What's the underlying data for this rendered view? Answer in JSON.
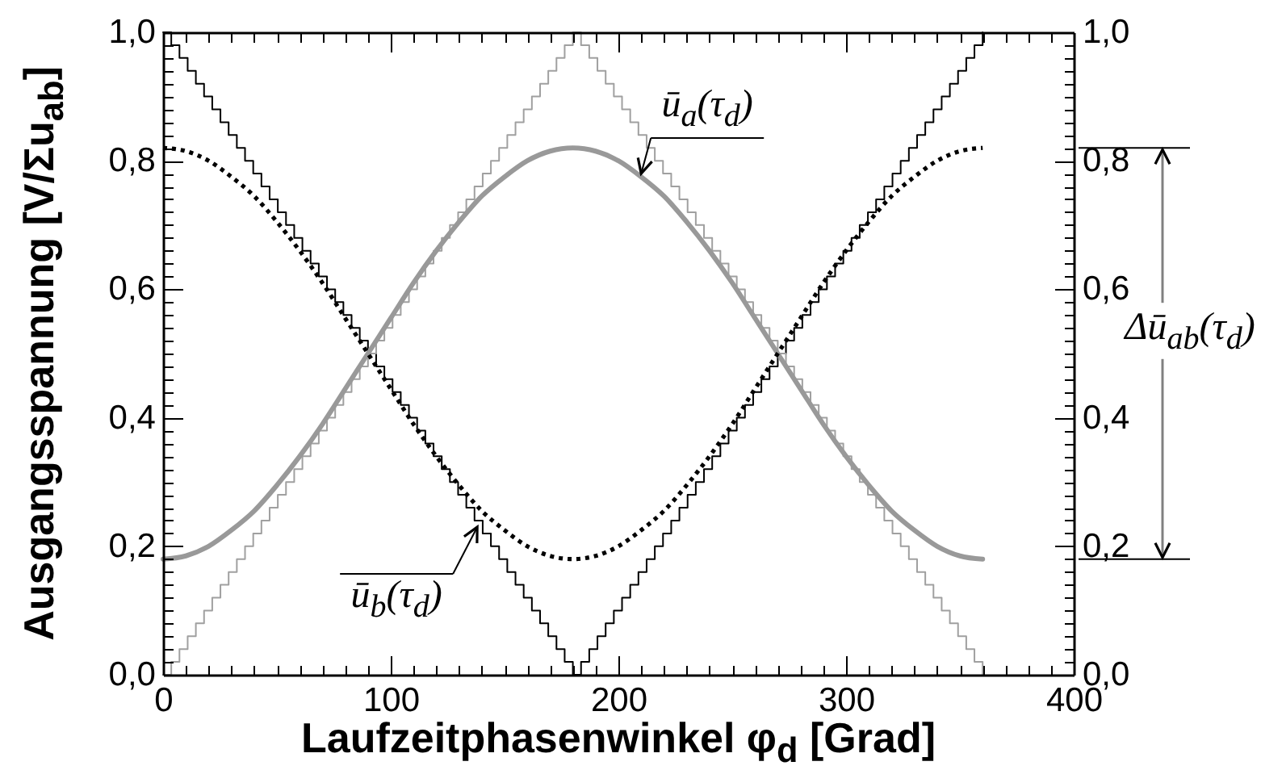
{
  "chart_data": {
    "type": "line",
    "xlabel": "Laufzeitphasenwinkel φ$_{d}$ [Grad]",
    "ylabel": "Ausgangsspannung [V/Σu$_{ab}$]",
    "xlim": [
      0,
      400
    ],
    "ylim": [
      0,
      1
    ],
    "y2lim": [
      0,
      1
    ],
    "xticks": [
      0,
      {
        "value": 10,
        "label": null
      },
      {
        "value": 20,
        "label": null
      },
      {
        "value": 30,
        "label": null
      },
      {
        "value": 40,
        "label": null
      },
      {
        "value": 50,
        "label": null
      },
      {
        "value": 60,
        "label": null
      },
      {
        "value": 70,
        "label": null
      },
      {
        "value": 80,
        "label": null
      },
      {
        "value": 90,
        "label": null
      },
      100,
      {
        "value": 110,
        "label": null
      },
      {
        "value": 120,
        "label": null
      },
      {
        "value": 130,
        "label": null
      },
      {
        "value": 140,
        "label": null
      },
      {
        "value": 150,
        "label": null
      },
      {
        "value": 160,
        "label": null
      },
      {
        "value": 170,
        "label": null
      },
      {
        "value": 180,
        "label": null
      },
      {
        "value": 190,
        "label": null
      },
      200,
      {
        "value": 210,
        "label": null
      },
      {
        "value": 220,
        "label": null
      },
      {
        "value": 230,
        "label": null
      },
      {
        "value": 240,
        "label": null
      },
      {
        "value": 250,
        "label": null
      },
      {
        "value": 260,
        "label": null
      },
      {
        "value": 270,
        "label": null
      },
      {
        "value": 280,
        "label": null
      },
      {
        "value": 290,
        "label": null
      },
      300,
      {
        "value": 310,
        "label": null
      },
      {
        "value": 320,
        "label": null
      },
      {
        "value": 330,
        "label": null
      },
      {
        "value": 340,
        "label": null
      },
      {
        "value": 350,
        "label": null
      },
      {
        "value": 360,
        "label": null
      },
      {
        "value": 370,
        "label": null
      },
      {
        "value": 380,
        "label": null
      },
      {
        "value": 390,
        "label": null
      },
      400
    ],
    "yticks": [
      {
        "value": 0,
        "label": "0,0"
      },
      {
        "value": 0.02,
        "label": null
      },
      {
        "value": 0.04,
        "label": null
      },
      {
        "value": 0.06,
        "label": null
      },
      {
        "value": 0.08,
        "label": null
      },
      {
        "value": 0.1,
        "label": null
      },
      {
        "value": 0.12,
        "label": null
      },
      {
        "value": 0.14,
        "label": null
      },
      {
        "value": 0.16,
        "label": null
      },
      {
        "value": 0.18,
        "label": null
      },
      {
        "value": 0.2,
        "label": "0,2"
      },
      {
        "value": 0.22,
        "label": null
      },
      {
        "value": 0.24,
        "label": null
      },
      {
        "value": 0.26,
        "label": null
      },
      {
        "value": 0.28,
        "label": null
      },
      {
        "value": 0.3,
        "label": null
      },
      {
        "value": 0.32,
        "label": null
      },
      {
        "value": 0.34,
        "label": null
      },
      {
        "value": 0.36,
        "label": null
      },
      {
        "value": 0.38,
        "label": null
      },
      {
        "value": 0.4,
        "label": "0,4"
      },
      {
        "value": 0.42,
        "label": null
      },
      {
        "value": 0.44,
        "label": null
      },
      {
        "value": 0.46,
        "label": null
      },
      {
        "value": 0.48,
        "label": null
      },
      {
        "value": 0.5,
        "label": null
      },
      {
        "value": 0.52,
        "label": null
      },
      {
        "value": 0.54,
        "label": null
      },
      {
        "value": 0.56,
        "label": null
      },
      {
        "value": 0.58,
        "label": null
      },
      {
        "value": 0.6,
        "label": "0,6"
      },
      {
        "value": 0.62,
        "label": null
      },
      {
        "value": 0.64,
        "label": null
      },
      {
        "value": 0.66,
        "label": null
      },
      {
        "value": 0.68,
        "label": null
      },
      {
        "value": 0.7,
        "label": null
      },
      {
        "value": 0.72,
        "label": null
      },
      {
        "value": 0.74,
        "label": null
      },
      {
        "value": 0.76,
        "label": null
      },
      {
        "value": 0.78,
        "label": null
      },
      {
        "value": 0.8,
        "label": "0,8"
      },
      {
        "value": 0.82,
        "label": null
      },
      {
        "value": 0.84,
        "label": null
      },
      {
        "value": 0.86,
        "label": null
      },
      {
        "value": 0.88,
        "label": null
      },
      {
        "value": 0.9,
        "label": null
      },
      {
        "value": 0.92,
        "label": null
      },
      {
        "value": 0.94,
        "label": null
      },
      {
        "value": 0.96,
        "label": null
      },
      {
        "value": 0.98,
        "label": null
      },
      {
        "value": 1,
        "label": "1,0"
      }
    ],
    "y2ticks": [
      {
        "value": 0,
        "label": "0,0"
      },
      {
        "value": 0.02,
        "label": null
      },
      {
        "value": 0.04,
        "label": null
      },
      {
        "value": 0.06,
        "label": null
      },
      {
        "value": 0.08,
        "label": null
      },
      {
        "value": 0.1,
        "label": null
      },
      {
        "value": 0.12,
        "label": null
      },
      {
        "value": 0.14,
        "label": null
      },
      {
        "value": 0.16,
        "label": null
      },
      {
        "value": 0.18,
        "label": null
      },
      {
        "value": 0.2,
        "label": "0,2"
      },
      {
        "value": 0.22,
        "label": null
      },
      {
        "value": 0.24,
        "label": null
      },
      {
        "value": 0.26,
        "label": null
      },
      {
        "value": 0.28,
        "label": null
      },
      {
        "value": 0.3,
        "label": null
      },
      {
        "value": 0.32,
        "label": null
      },
      {
        "value": 0.34,
        "label": null
      },
      {
        "value": 0.36,
        "label": null
      },
      {
        "value": 0.38,
        "label": null
      },
      {
        "value": 0.4,
        "label": "0,4"
      },
      {
        "value": 0.42,
        "label": null
      },
      {
        "value": 0.44,
        "label": null
      },
      {
        "value": 0.46,
        "label": null
      },
      {
        "value": 0.48,
        "label": null
      },
      {
        "value": 0.5,
        "label": null
      },
      {
        "value": 0.52,
        "label": null
      },
      {
        "value": 0.54,
        "label": null
      },
      {
        "value": 0.56,
        "label": null
      },
      {
        "value": 0.58,
        "label": null
      },
      {
        "value": 0.6,
        "label": "0,6"
      },
      {
        "value": 0.62,
        "label": null
      },
      {
        "value": 0.64,
        "label": null
      },
      {
        "value": 0.66,
        "label": null
      },
      {
        "value": 0.68,
        "label": null
      },
      {
        "value": 0.7,
        "label": null
      },
      {
        "value": 0.72,
        "label": null
      },
      {
        "value": 0.74,
        "label": null
      },
      {
        "value": 0.76,
        "label": null
      },
      {
        "value": 0.78,
        "label": null
      },
      {
        "value": 0.8,
        "label": "0,8"
      },
      {
        "value": 0.82,
        "label": null
      },
      {
        "value": 0.84,
        "label": null
      },
      {
        "value": 0.86,
        "label": null
      },
      {
        "value": 0.88,
        "label": null
      },
      {
        "value": 0.9,
        "label": null
      },
      {
        "value": 0.92,
        "label": null
      },
      {
        "value": 0.94,
        "label": null
      },
      {
        "value": 0.96,
        "label": null
      },
      {
        "value": 0.98,
        "label": null
      },
      {
        "value": 1,
        "label": "1,0"
      }
    ],
    "series": [
      {
        "type": "step",
        "color": "#000000",
        "x": [
          0,
          3.6,
          7.2,
          10.8,
          14.4,
          18,
          21.6,
          25.2,
          28.8,
          32.4,
          36,
          39.6,
          43.2,
          46.8,
          50.4,
          54,
          57.6,
          61.2,
          64.8,
          68.4,
          72,
          75.6,
          79.2,
          82.8,
          86.4,
          90,
          93.6,
          97.2,
          100.8,
          104.4,
          108,
          111.6,
          115.2,
          118.8,
          122.4,
          126,
          129.6,
          133.2,
          136.8,
          140.4,
          144,
          147.6,
          151.2,
          154.8,
          158.4,
          162,
          165.6,
          169.2,
          172.8,
          176.4,
          180,
          183.6,
          187.2,
          190.8,
          194.4,
          198,
          201.6,
          205.2,
          208.8,
          212.4,
          216,
          219.6,
          223.2,
          226.8,
          230.4,
          234,
          237.6,
          241.2,
          244.8,
          248.4,
          252,
          255.6,
          259.2,
          262.8,
          266.4,
          270,
          273.6,
          277.2,
          280.8,
          284.4,
          288,
          291.6,
          295.2,
          298.8,
          302.4,
          306,
          309.6,
          313.2,
          316.8,
          320.4,
          324,
          327.6,
          331.2,
          334.8,
          338.4,
          342,
          345.6,
          349.2,
          352.8,
          356.4,
          360
        ],
        "values": [
          1,
          0.98,
          0.96,
          0.94,
          0.92,
          0.9,
          0.88,
          0.86,
          0.84,
          0.82,
          0.8,
          0.78,
          0.76,
          0.74,
          0.72,
          0.7,
          0.68,
          0.66,
          0.64,
          0.62,
          0.6,
          0.58,
          0.56,
          0.54,
          0.52,
          0.5,
          0.48,
          0.46,
          0.44,
          0.42,
          0.4,
          0.38,
          0.36,
          0.34,
          0.32,
          0.3,
          0.28,
          0.26,
          0.24,
          0.22,
          0.2,
          0.18,
          0.16,
          0.14,
          0.12,
          0.1,
          0.08,
          0.06,
          0.04,
          0.02,
          0,
          0.02,
          0.04,
          0.06,
          0.08,
          0.1,
          0.12,
          0.14,
          0.16,
          0.18,
          0.2,
          0.22,
          0.24,
          0.26,
          0.28,
          0.3,
          0.32,
          0.34,
          0.36,
          0.38,
          0.4,
          0.42,
          0.44,
          0.46,
          0.48,
          0.5,
          0.52,
          0.54,
          0.56,
          0.58,
          0.6,
          0.62,
          0.64,
          0.66,
          0.68,
          0.7,
          0.72,
          0.74,
          0.76,
          0.78,
          0.8,
          0.82,
          0.84,
          0.86,
          0.88,
          0.9,
          0.92,
          0.94,
          0.96,
          0.98,
          1
        ]
      },
      {
        "type": "step",
        "color": "#a0a0a0",
        "x": [
          0,
          3.6,
          7.2,
          10.8,
          14.4,
          18,
          21.6,
          25.2,
          28.8,
          32.4,
          36,
          39.6,
          43.2,
          46.8,
          50.4,
          54,
          57.6,
          61.2,
          64.8,
          68.4,
          72,
          75.6,
          79.2,
          82.8,
          86.4,
          90,
          93.6,
          97.2,
          100.8,
          104.4,
          108,
          111.6,
          115.2,
          118.8,
          122.4,
          126,
          129.6,
          133.2,
          136.8,
          140.4,
          144,
          147.6,
          151.2,
          154.8,
          158.4,
          162,
          165.6,
          169.2,
          172.8,
          176.4,
          180,
          183.6,
          187.2,
          190.8,
          194.4,
          198,
          201.6,
          205.2,
          208.8,
          212.4,
          216,
          219.6,
          223.2,
          226.8,
          230.4,
          234,
          237.6,
          241.2,
          244.8,
          248.4,
          252,
          255.6,
          259.2,
          262.8,
          266.4,
          270,
          273.6,
          277.2,
          280.8,
          284.4,
          288,
          291.6,
          295.2,
          298.8,
          302.4,
          306,
          309.6,
          313.2,
          316.8,
          320.4,
          324,
          327.6,
          331.2,
          334.8,
          338.4,
          342,
          345.6,
          349.2,
          352.8,
          356.4,
          360
        ],
        "values": [
          0,
          0.02,
          0.04,
          0.06,
          0.08,
          0.1,
          0.12,
          0.14,
          0.16,
          0.18,
          0.2,
          0.22,
          0.24,
          0.26,
          0.28,
          0.3,
          0.32,
          0.34,
          0.36,
          0.38,
          0.4,
          0.42,
          0.44,
          0.46,
          0.48,
          0.5,
          0.52,
          0.54,
          0.56,
          0.58,
          0.6,
          0.62,
          0.64,
          0.66,
          0.68,
          0.7,
          0.72,
          0.74,
          0.76,
          0.78,
          0.8,
          0.82,
          0.84,
          0.86,
          0.88,
          0.9,
          0.92,
          0.94,
          0.96,
          0.98,
          1,
          0.98,
          0.96,
          0.94,
          0.92,
          0.9,
          0.88,
          0.86,
          0.84,
          0.82,
          0.8,
          0.78,
          0.76,
          0.74,
          0.72,
          0.7,
          0.68,
          0.66,
          0.64,
          0.62,
          0.6,
          0.58,
          0.56,
          0.54,
          0.52,
          0.5,
          0.48,
          0.46,
          0.44,
          0.42,
          0.4,
          0.38,
          0.36,
          0.34,
          0.32,
          0.3,
          0.28,
          0.26,
          0.24,
          0.22,
          0.2,
          0.18,
          0.16,
          0.14,
          0.12,
          0.1,
          0.08,
          0.06,
          0.04,
          0.02,
          0
        ]
      },
      {
        "type": "line",
        "color": "#999999",
        "x": [
          0,
          10,
          20,
          30,
          40,
          50,
          60,
          70,
          80,
          90,
          100,
          110,
          120,
          130,
          140,
          150,
          160,
          170,
          180,
          190,
          200,
          210,
          220,
          230,
          240,
          250,
          260,
          270,
          280,
          290,
          300,
          310,
          320,
          330,
          340,
          350,
          360
        ],
        "values": [
          0.18,
          0.185,
          0.2,
          0.225,
          0.255,
          0.295,
          0.34,
          0.39,
          0.445,
          0.5,
          0.555,
          0.61,
          0.66,
          0.705,
          0.745,
          0.775,
          0.8,
          0.815,
          0.82,
          0.815,
          0.8,
          0.775,
          0.745,
          0.705,
          0.66,
          0.61,
          0.555,
          0.5,
          0.445,
          0.39,
          0.34,
          0.295,
          0.255,
          0.225,
          0.2,
          0.185,
          0.18
        ]
      },
      {
        "type": "line",
        "color": "#000000",
        "line_style": "dotted",
        "x": [
          0,
          10,
          20,
          30,
          40,
          50,
          60,
          70,
          80,
          90,
          100,
          110,
          120,
          130,
          140,
          150,
          160,
          170,
          180,
          190,
          200,
          210,
          220,
          230,
          240,
          250,
          260,
          270,
          280,
          290,
          300,
          310,
          320,
          330,
          340,
          350,
          360
        ],
        "values": [
          0.82,
          0.815,
          0.8,
          0.775,
          0.745,
          0.705,
          0.66,
          0.61,
          0.555,
          0.5,
          0.445,
          0.39,
          0.34,
          0.295,
          0.255,
          0.225,
          0.2,
          0.185,
          0.18,
          0.185,
          0.2,
          0.225,
          0.255,
          0.295,
          0.34,
          0.39,
          0.445,
          0.5,
          0.555,
          0.61,
          0.66,
          0.705,
          0.745,
          0.775,
          0.8,
          0.815,
          0.82
        ]
      }
    ],
    "annotations": [
      {
        "text": "ū$_{a}$(τ$_{d}$)",
        "x": 210,
        "y": 0.78
      },
      {
        "text": "ū$_{b}$(τ$_{d}$)",
        "x": 138,
        "y": 0.23
      },
      "Δū$_{ab}$(τ$_{d}$)"
    ]
  }
}
